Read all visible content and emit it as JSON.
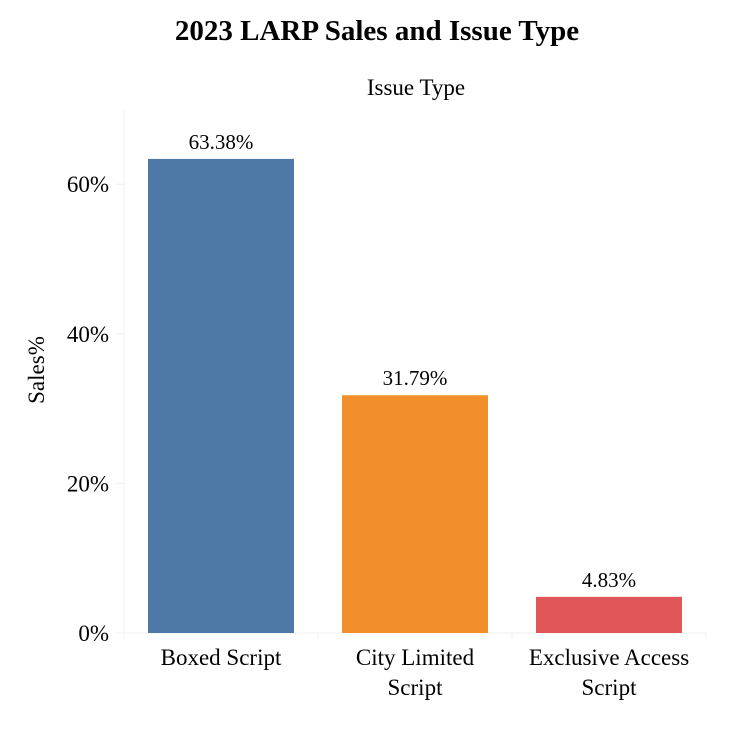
{
  "chart_data": {
    "type": "bar",
    "title": "2023 LARP Sales and Issue Type",
    "header_label": "Issue Type",
    "xlabel": "",
    "ylabel": "Sales%",
    "ylim": [
      0,
      70
    ],
    "yticks": [
      0,
      20,
      40,
      60
    ],
    "ytick_labels": [
      "0%",
      "20%",
      "40%",
      "60%"
    ],
    "categories": [
      [
        "Boxed Script"
      ],
      [
        "City Limited",
        "Script"
      ],
      [
        "Exclusive Access",
        "Script"
      ]
    ],
    "values": [
      63.38,
      31.79,
      4.83
    ],
    "value_labels": [
      "63.38%",
      "31.79%",
      "4.83%"
    ],
    "colors": [
      "#4e79a7",
      "#f28e2b",
      "#e15759"
    ],
    "grid": false
  }
}
